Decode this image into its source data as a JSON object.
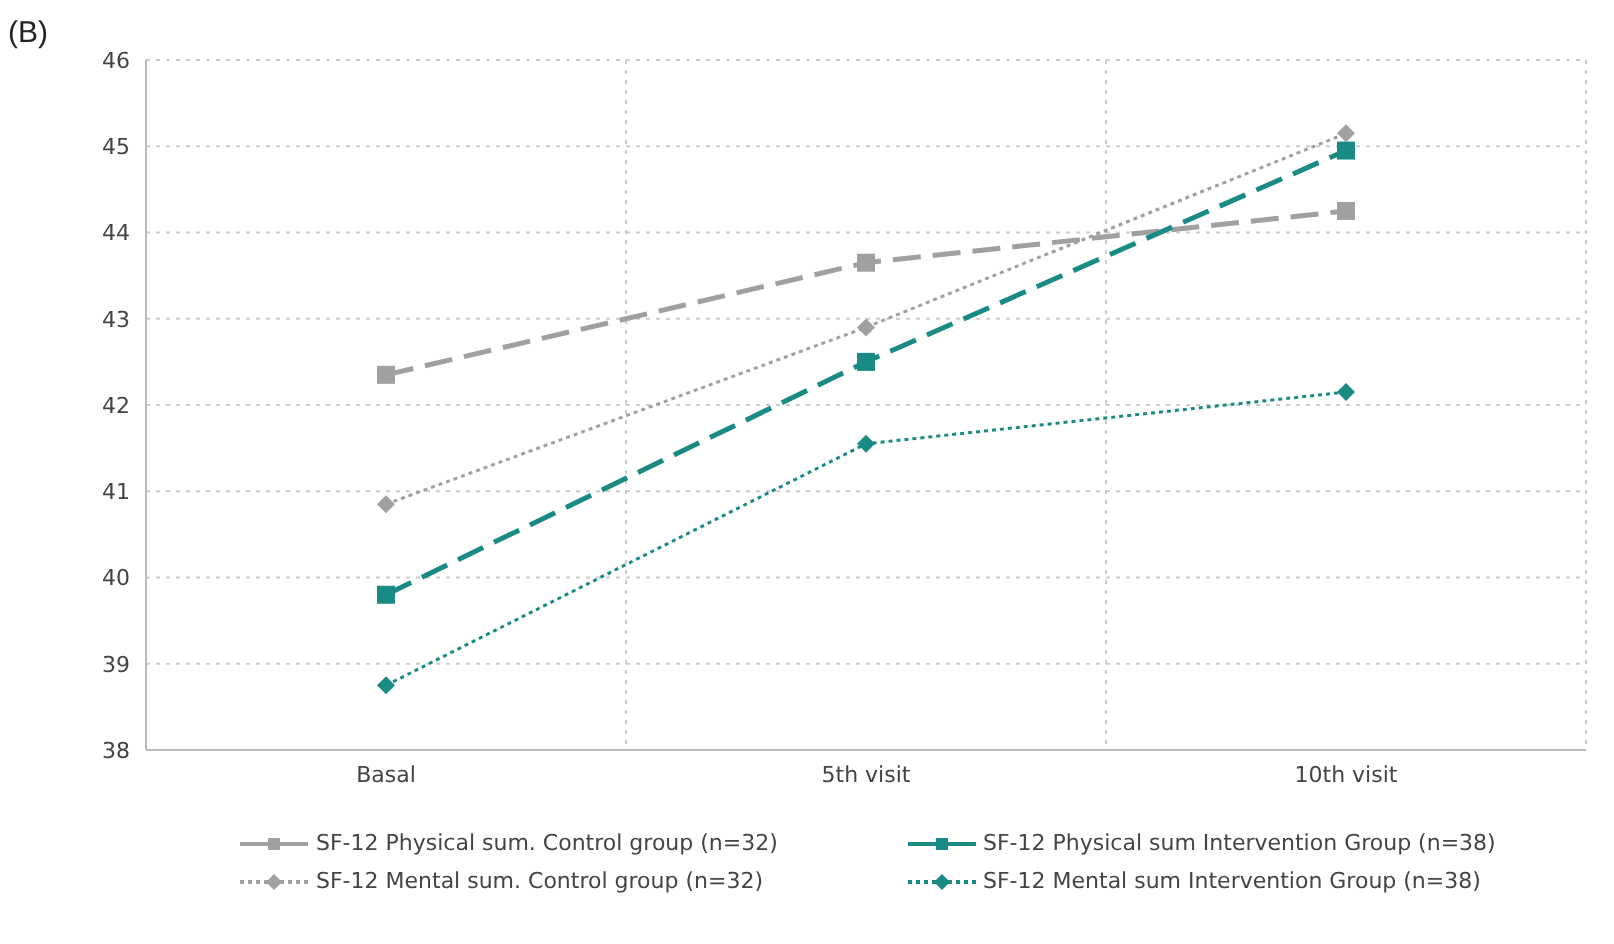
{
  "chart_data": {
    "type": "line",
    "annotations": [
      "(B)"
    ],
    "categories": [
      "Basal",
      "5th visit",
      "10th visit"
    ],
    "series": [
      {
        "name": "SF-12 Physical sum. Control group (n=32)",
        "color": "#a0a0a0",
        "values": [
          42.35,
          43.65,
          44.25
        ],
        "marker": "square",
        "line_style": "dashed"
      },
      {
        "name": "SF-12 Physical sum Intervention Group (n=38)",
        "color": "#1a8a85",
        "values": [
          39.8,
          42.5,
          44.95
        ],
        "marker": "square",
        "line_style": "dashed"
      },
      {
        "name": "SF-12 Mental sum. Control group (n=32)",
        "color": "#a0a0a0",
        "values": [
          40.85,
          42.9,
          45.15
        ],
        "marker": "diamond",
        "line_style": "dotted"
      },
      {
        "name": "SF-12 Mental sum Intervention Group (n=38)",
        "color": "#1a8a85",
        "values": [
          38.75,
          41.55,
          42.15
        ],
        "marker": "diamond",
        "line_style": "dotted"
      }
    ],
    "ylim": [
      38,
      46
    ],
    "yticks": [
      38,
      39,
      40,
      41,
      42,
      43,
      44,
      45,
      46
    ],
    "grid": true,
    "legend": "bottom"
  }
}
